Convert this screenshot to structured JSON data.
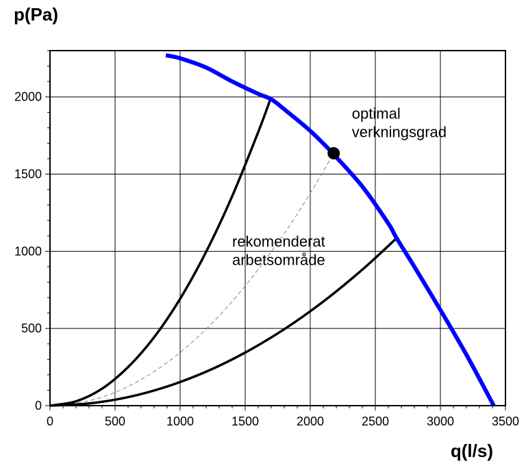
{
  "chart_data": {
    "type": "line",
    "title": "",
    "xlabel": "q(l/s)",
    "ylabel": "p(Pa)",
    "xlim": [
      0,
      3500
    ],
    "ylim": [
      0,
      2300
    ],
    "x_ticks": [
      0,
      500,
      1000,
      1500,
      2000,
      2500,
      3000,
      3500
    ],
    "y_ticks": [
      0,
      500,
      1000,
      1500,
      2000
    ],
    "x_tick_labels": [
      "0",
      "500",
      "1000",
      "1500",
      "2000",
      "2500",
      "3000",
      "3500"
    ],
    "y_tick_labels": [
      "0",
      "500",
      "1000",
      "1500",
      "2000"
    ],
    "grid": true,
    "colors": {
      "fan_curve": "#0000ff",
      "system_curves": "#000000",
      "optimal_curve": "#808080"
    },
    "series": [
      {
        "id": "fan-curve",
        "x": [
          890,
          1000,
          1200,
          1400,
          1600,
          1700,
          1800,
          2000,
          2180,
          2200,
          2400,
          2600,
          2660,
          2800,
          3000,
          3200,
          3410
        ],
        "y": [
          2270,
          2250,
          2190,
          2100,
          2020,
          1985,
          1920,
          1780,
          1630,
          1610,
          1420,
          1180,
          1090,
          900,
          620,
          330,
          0
        ]
      },
      {
        "id": "system-curve-upper",
        "x": [
          0,
          200,
          400,
          600,
          800,
          1000,
          1200,
          1400,
          1600,
          1700
        ],
        "y": [
          0,
          28,
          110,
          250,
          443,
          692,
          997,
          1357,
          1772,
          2000
        ]
      },
      {
        "id": "system-curve-lower",
        "x": [
          0,
          300,
          600,
          900,
          1200,
          1500,
          1800,
          2100,
          2400,
          2660
        ],
        "y": [
          0,
          14,
          55,
          124,
          220,
          344,
          495,
          674,
          881,
          1082
        ]
      },
      {
        "id": "optimal-system-curve",
        "x": [
          0,
          300,
          600,
          900,
          1200,
          1500,
          1800,
          2000,
          2180
        ],
        "y": [
          0,
          31,
          124,
          279,
          496,
          775,
          1115,
          1377,
          1635
        ]
      }
    ],
    "points": [
      {
        "id": "optimal-point",
        "x": 2180,
        "y": 1635
      }
    ],
    "annotations": [
      {
        "id": "annotation-optimal",
        "lines": [
          "optimal",
          "verkningsgrad"
        ],
        "x": 2320,
        "y": 1860
      },
      {
        "id": "annotation-range",
        "lines": [
          "rekomenderat",
          "arbetsområde"
        ],
        "x": 1400,
        "y": 1030
      }
    ]
  }
}
